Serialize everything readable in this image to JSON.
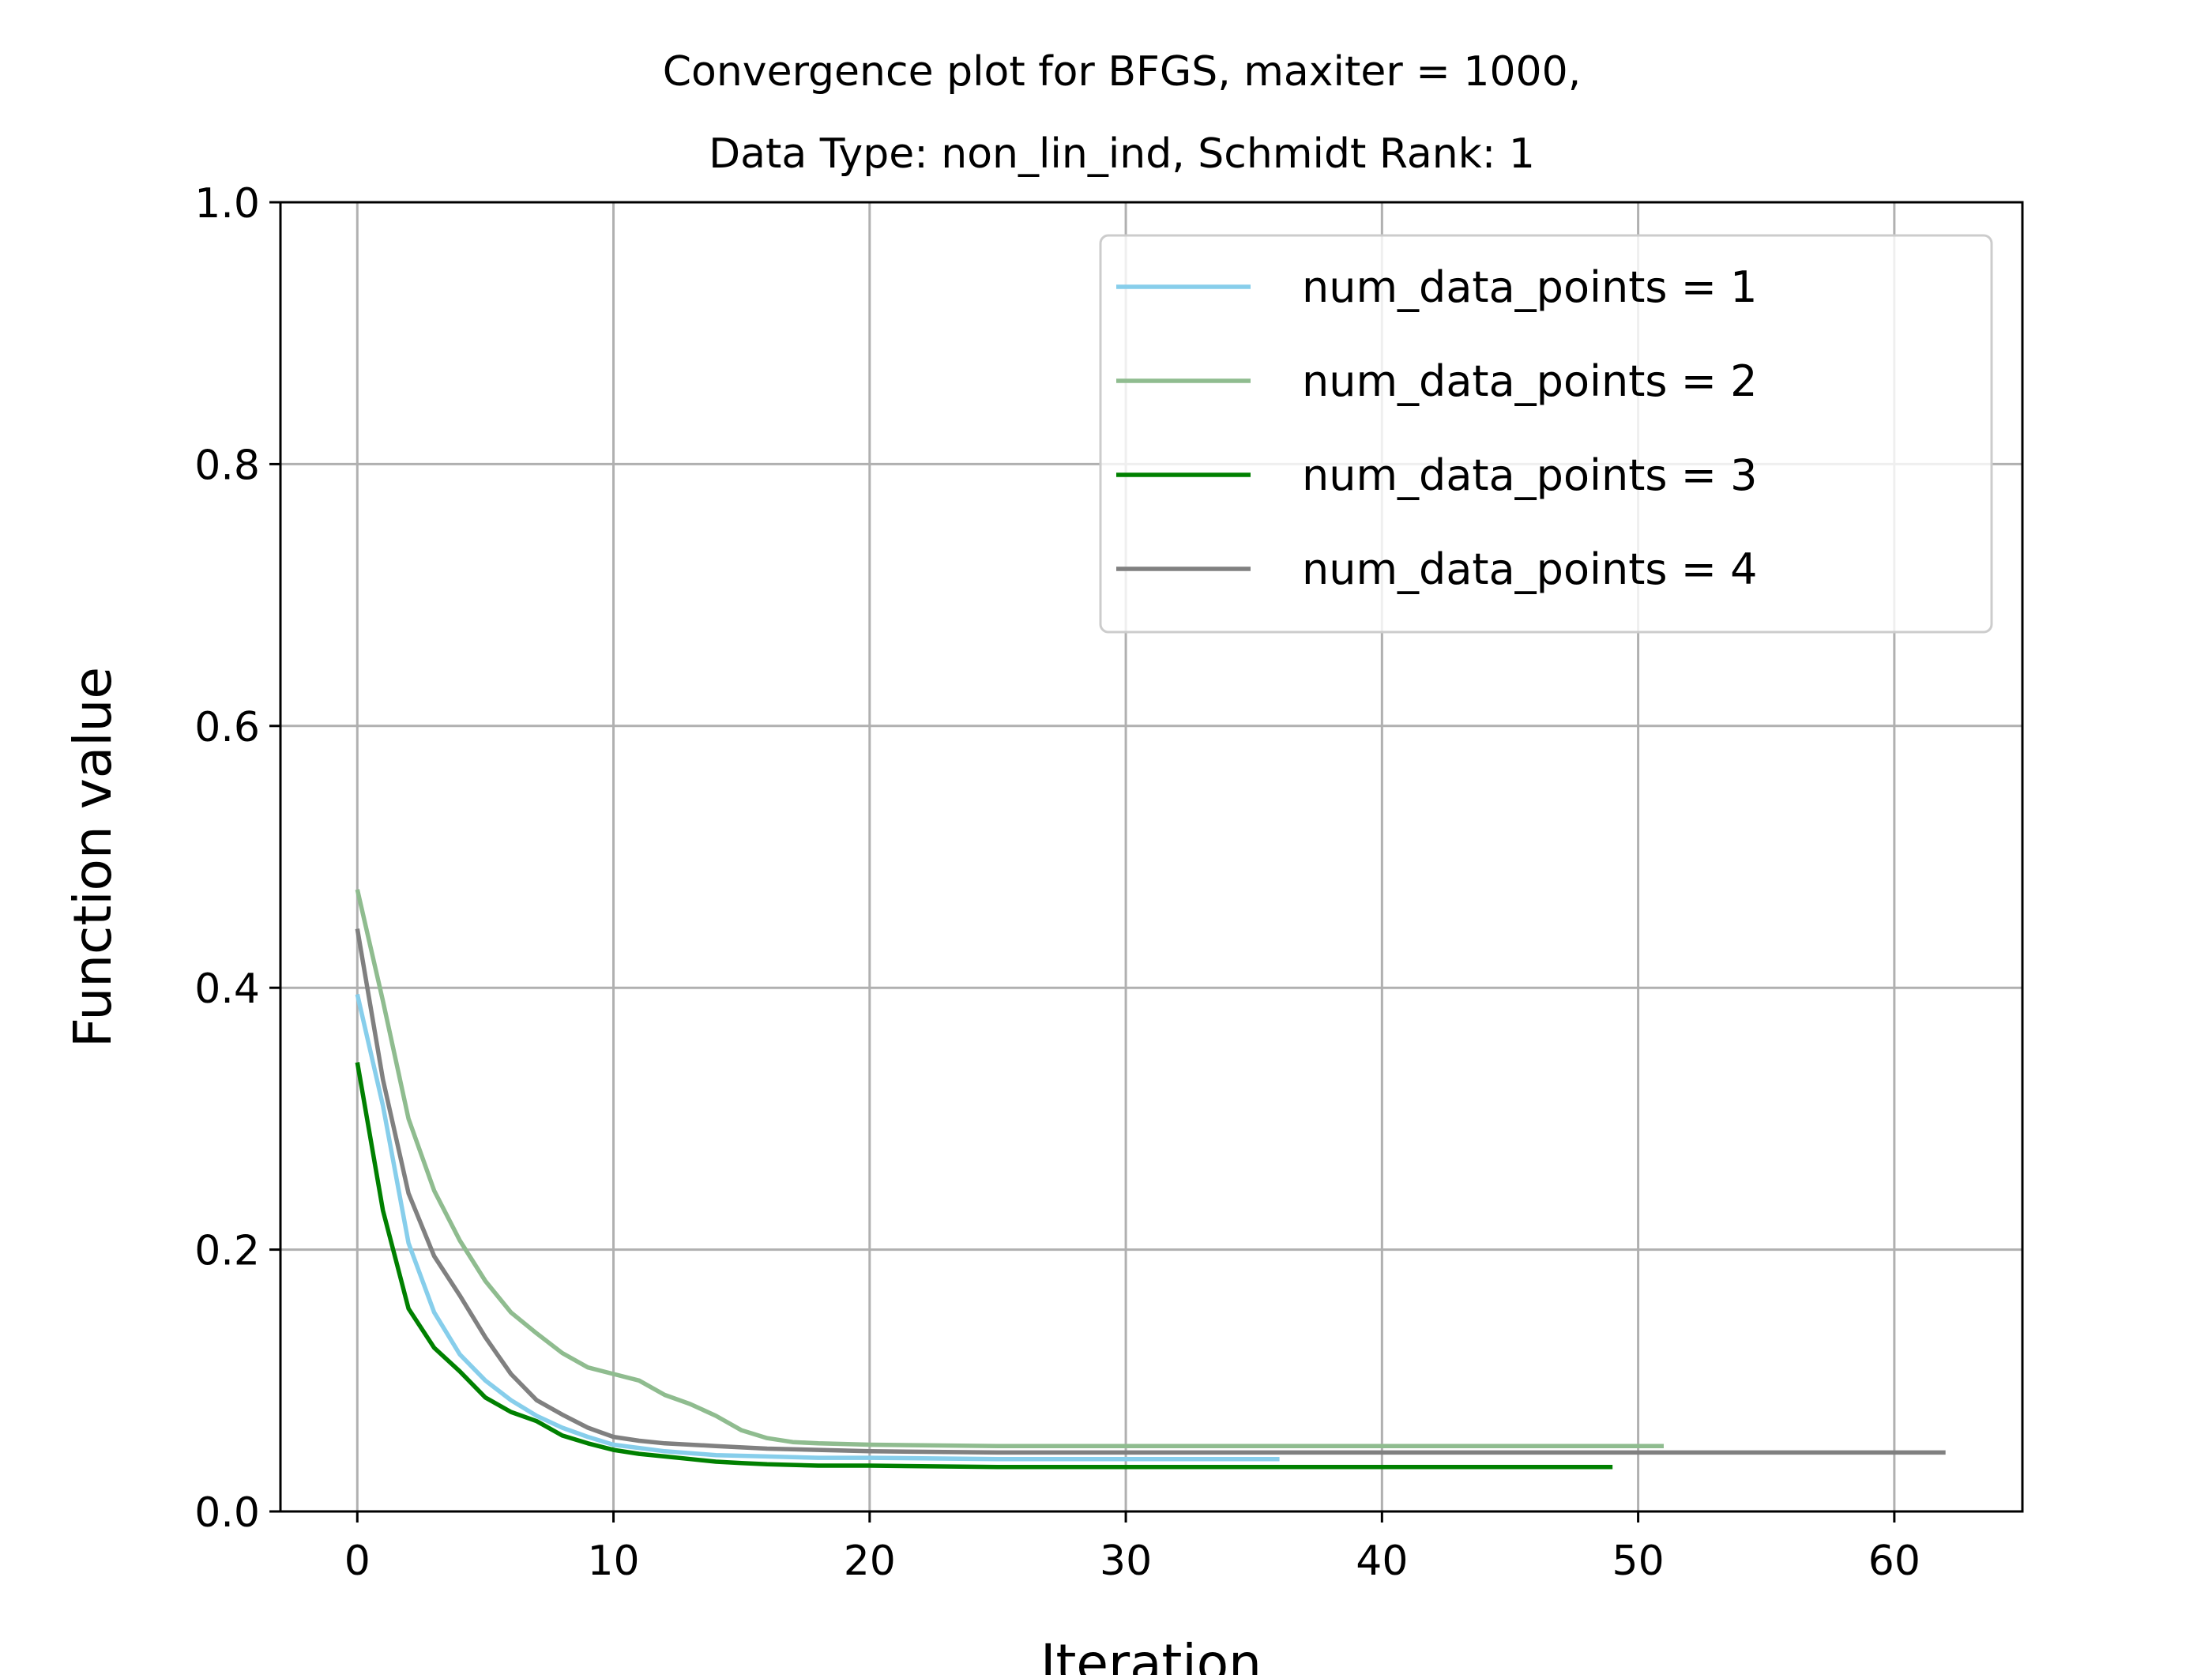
{
  "chart_data": {
    "type": "line",
    "title_line1": "Convergence plot for BFGS, maxiter = 1000,",
    "title_line2": "Data Type: non_lin_ind, Schmidt Rank: 1",
    "xlabel": "Iteration",
    "ylabel": "Function value",
    "xlim": [
      -3,
      65
    ],
    "ylim": [
      0,
      1
    ],
    "xticks": [
      "0",
      "10",
      "20",
      "30",
      "40",
      "50",
      "60"
    ],
    "xtick_values": [
      0,
      10,
      20,
      30,
      40,
      50,
      60
    ],
    "yticks": [
      "0.0",
      "0.2",
      "0.4",
      "0.6",
      "0.8",
      "1.0"
    ],
    "ytick_values": [
      0,
      0.2,
      0.4,
      0.6,
      0.8,
      1.0
    ],
    "grid": true,
    "legend_position": "top-right",
    "series": [
      {
        "name": "num_data_points = 1",
        "color": "#87ceeb",
        "x": [
          0,
          1,
          2,
          3,
          4,
          5,
          6,
          7,
          8,
          9,
          10,
          12,
          14,
          16,
          18,
          20,
          25,
          30,
          36
        ],
        "y": [
          0.395,
          0.31,
          0.205,
          0.152,
          0.12,
          0.1,
          0.085,
          0.073,
          0.064,
          0.057,
          0.051,
          0.046,
          0.043,
          0.042,
          0.041,
          0.041,
          0.04,
          0.04,
          0.04
        ]
      },
      {
        "name": "num_data_points = 2",
        "color": "#8fbc8f",
        "x": [
          0,
          1,
          2,
          3,
          4,
          5,
          6,
          7,
          8,
          9,
          10,
          11,
          12,
          13,
          14,
          15,
          16,
          17,
          18,
          20,
          25,
          30,
          40,
          51
        ],
        "y": [
          0.475,
          0.39,
          0.3,
          0.245,
          0.207,
          0.176,
          0.152,
          0.136,
          0.121,
          0.11,
          0.105,
          0.1,
          0.089,
          0.082,
          0.073,
          0.062,
          0.056,
          0.053,
          0.052,
          0.051,
          0.05,
          0.05,
          0.05,
          0.05
        ]
      },
      {
        "name": "num_data_points = 3",
        "color": "#008000",
        "x": [
          0,
          1,
          2,
          3,
          4,
          5,
          6,
          7,
          8,
          9,
          10,
          11,
          12,
          13,
          14,
          15,
          16,
          18,
          20,
          25,
          30,
          40,
          49
        ],
        "y": [
          0.343,
          0.23,
          0.155,
          0.125,
          0.107,
          0.087,
          0.076,
          0.069,
          0.058,
          0.052,
          0.047,
          0.044,
          0.042,
          0.04,
          0.038,
          0.037,
          0.036,
          0.035,
          0.035,
          0.034,
          0.034,
          0.034,
          0.034
        ]
      },
      {
        "name": "num_data_points = 4",
        "color": "#808080",
        "x": [
          0,
          1,
          2,
          3,
          4,
          5,
          6,
          7,
          8,
          9,
          10,
          11,
          12,
          14,
          16,
          18,
          20,
          25,
          30,
          40,
          50,
          62
        ],
        "y": [
          0.445,
          0.33,
          0.243,
          0.195,
          0.165,
          0.133,
          0.105,
          0.085,
          0.074,
          0.064,
          0.057,
          0.054,
          0.052,
          0.05,
          0.048,
          0.047,
          0.046,
          0.045,
          0.045,
          0.045,
          0.045,
          0.045
        ]
      }
    ]
  }
}
